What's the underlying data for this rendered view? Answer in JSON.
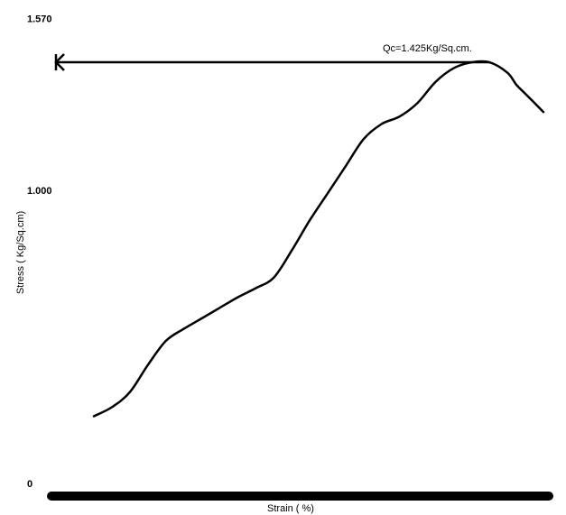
{
  "chart_data": {
    "type": "line",
    "xlabel": "Strain ( %)",
    "ylabel": "Stress ( Kg/Sq.cm)",
    "ylim": [
      0,
      1.57
    ],
    "y_tick_labels": [
      "1.570",
      "1.000",
      "0"
    ],
    "y_ticks": [
      1.57,
      1.0,
      0
    ],
    "grid": false,
    "annotation": {
      "text": "Qc=1.425Kg/Sq.cm.",
      "value": 1.425
    },
    "series": [
      {
        "x": [
          0.0,
          0.04,
          0.08,
          0.12,
          0.16,
          0.2,
          0.24,
          0.28,
          0.32,
          0.36,
          0.4,
          0.44,
          0.48,
          0.52,
          0.56,
          0.6,
          0.64,
          0.68,
          0.72,
          0.76,
          0.8,
          0.84,
          0.88,
          0.92,
          0.94,
          0.96,
          1.0
        ],
        "y": [
          0.25,
          0.28,
          0.33,
          0.42,
          0.5,
          0.54,
          0.575,
          0.61,
          0.645,
          0.675,
          0.71,
          0.8,
          0.9,
          0.99,
          1.08,
          1.17,
          1.22,
          1.245,
          1.29,
          1.36,
          1.405,
          1.425,
          1.425,
          1.39,
          1.35,
          1.32,
          1.26
        ]
      }
    ],
    "colors": {
      "line": "#000000",
      "background": "#ffffff"
    }
  }
}
